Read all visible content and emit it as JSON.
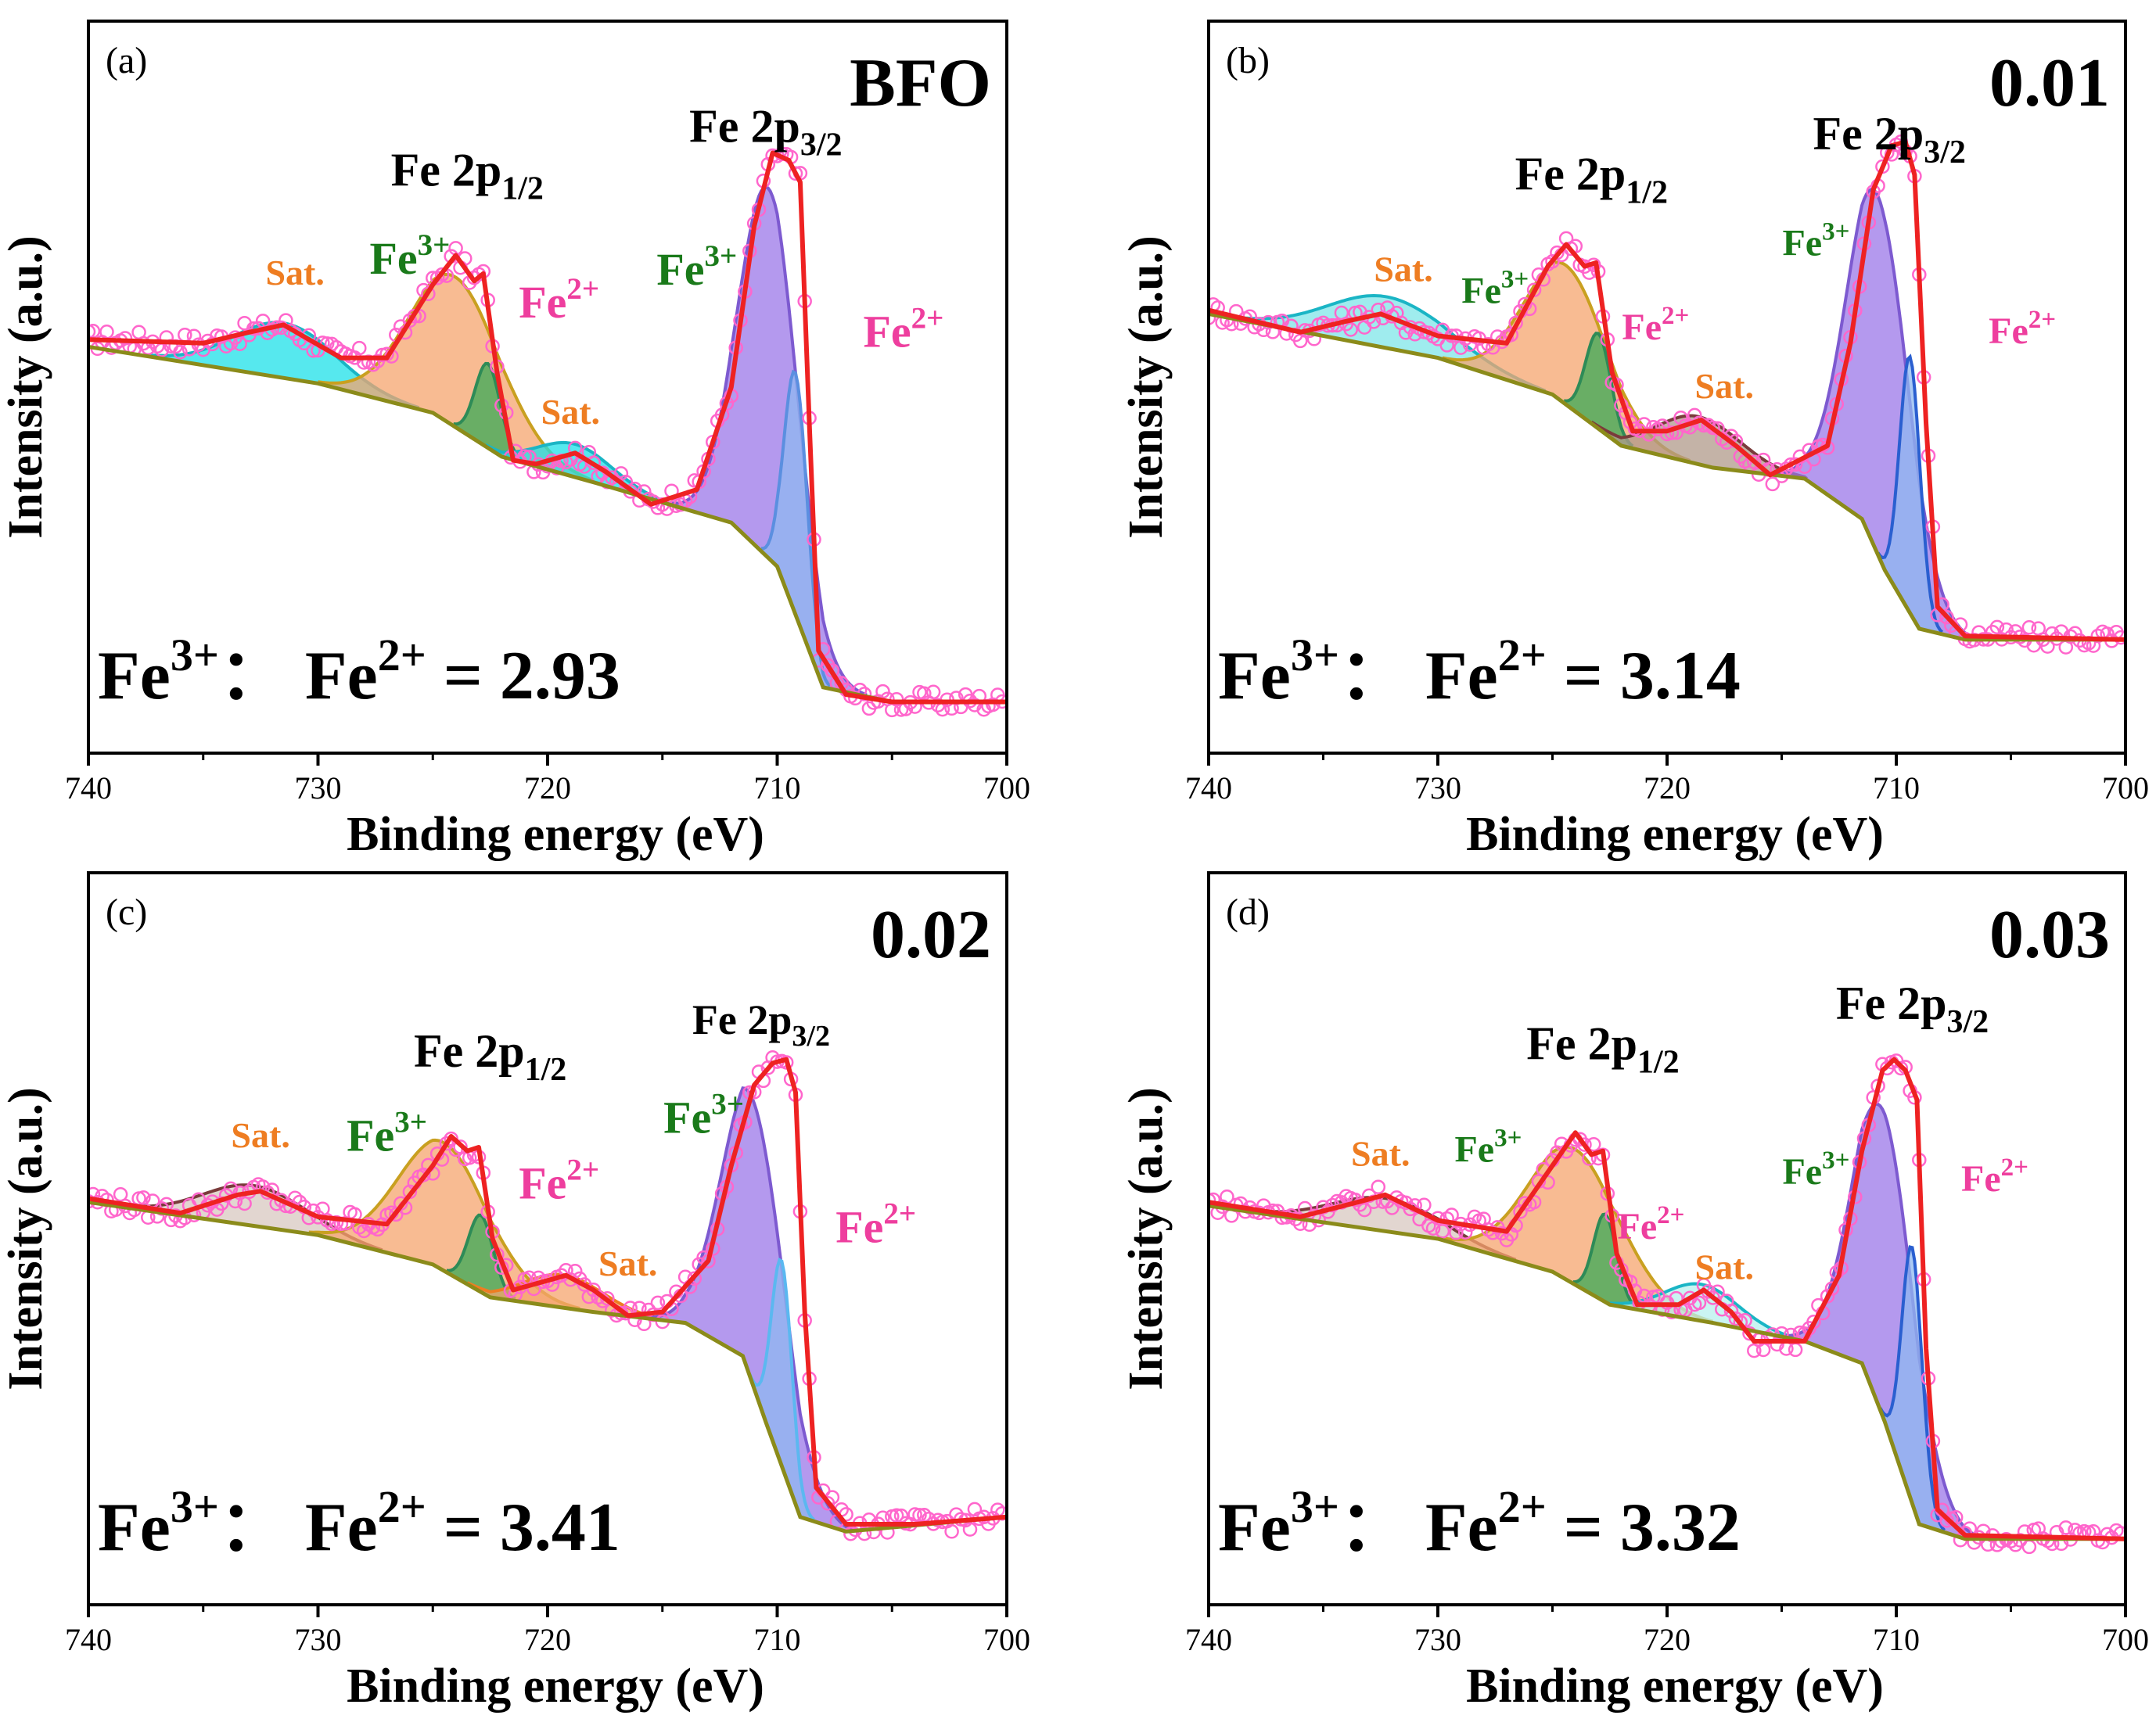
{
  "chart_data": [
    {
      "type": "line",
      "panel": "(a)",
      "sample": "BFO",
      "xlabel": "Binding energy (eV)",
      "ylabel": "Intensity (a.u.)",
      "xlim": [
        740,
        700
      ],
      "xticks": [
        740,
        730,
        720,
        710,
        700
      ],
      "ratio_text": {
        "fe3": "Fe",
        "fe3_sup": "3+",
        "sep": "：",
        "fe2": "Fe",
        "fe2_sup": "2+",
        "value": "= 2.93"
      },
      "annotations": [
        {
          "text": "Fe 2p",
          "sub": "1/2",
          "x": 723.5,
          "y": 0.775,
          "color": "#000000",
          "size": 60
        },
        {
          "text": "Fe 2p",
          "sub": "3/2",
          "x": 710.5,
          "y": 0.835,
          "color": "#000000",
          "size": 60
        },
        {
          "text": "Sat.",
          "x": 731,
          "y": 0.64,
          "color": "#ee7d22",
          "size": 46
        },
        {
          "text": "Fe",
          "sup": "3+",
          "x": 726,
          "y": 0.655,
          "color": "#1a7a1a",
          "size": 58
        },
        {
          "text": "Fe",
          "sup": "2+",
          "x": 719.5,
          "y": 0.595,
          "color": "#ee3e9e",
          "size": 58
        },
        {
          "text": "Sat.",
          "x": 719,
          "y": 0.45,
          "color": "#ee7d22",
          "size": 46
        },
        {
          "text": "Fe",
          "sup": "3+",
          "x": 713.5,
          "y": 0.64,
          "color": "#1a7a1a",
          "size": 58
        },
        {
          "text": "Fe",
          "sup": "2+",
          "x": 704.5,
          "y": 0.555,
          "color": "#ee3e9e",
          "size": 58
        }
      ],
      "background_points": [
        [
          740,
          0.555
        ],
        [
          730,
          0.505
        ],
        [
          725,
          0.465
        ],
        [
          722,
          0.405
        ],
        [
          718,
          0.37
        ],
        [
          712,
          0.315
        ],
        [
          710,
          0.255
        ],
        [
          708,
          0.09
        ],
        [
          705,
          0.07
        ],
        [
          700,
          0.07
        ]
      ],
      "envelope": [
        [
          740,
          0.565
        ],
        [
          735,
          0.56
        ],
        [
          733,
          0.575
        ],
        [
          731.5,
          0.585
        ],
        [
          729,
          0.54
        ],
        [
          727,
          0.54
        ],
        [
          725,
          0.64
        ],
        [
          724,
          0.68
        ],
        [
          723.2,
          0.645
        ],
        [
          722.8,
          0.655
        ],
        [
          722.2,
          0.52
        ],
        [
          721.5,
          0.4
        ],
        [
          720.5,
          0.395
        ],
        [
          718.8,
          0.41
        ],
        [
          717.5,
          0.385
        ],
        [
          715.5,
          0.34
        ],
        [
          713.5,
          0.36
        ],
        [
          712,
          0.5
        ],
        [
          711,
          0.72
        ],
        [
          710.2,
          0.82
        ],
        [
          709.5,
          0.81
        ],
        [
          709,
          0.78
        ],
        [
          708.6,
          0.45
        ],
        [
          708.2,
          0.14
        ],
        [
          707,
          0.08
        ],
        [
          705,
          0.07
        ],
        [
          700,
          0.07
        ]
      ],
      "components": [
        {
          "name": "Sat.",
          "center": 731.5,
          "height": 0.075,
          "width": 2.2,
          "fill": "#1ee0e8",
          "line": "#1ab5c5"
        },
        {
          "name": "Fe3+",
          "center": 724.0,
          "height": 0.205,
          "width": 2.0,
          "fill": "#f6a46e",
          "line": "#c9a020"
        },
        {
          "name": "Fe2+",
          "center": 722.6,
          "height": 0.115,
          "width": 0.55,
          "fill": "#3aaa55",
          "line": "#2e8b57"
        },
        {
          "name": "Sat.",
          "center": 718.8,
          "height": 0.045,
          "width": 1.6,
          "fill": "#1ee0e8",
          "line": "#1ab5c5"
        },
        {
          "name": "Fe3+",
          "center": 710.4,
          "height": 0.505,
          "width": 1.3,
          "fill": "#9b77e8",
          "line": "#7d5ad0"
        },
        {
          "name": "Fe2+",
          "center": 709.2,
          "height": 0.33,
          "width": 0.5,
          "fill": "#8fb8f0",
          "line": "#5b8fe0"
        }
      ]
    },
    {
      "type": "line",
      "panel": "(b)",
      "sample": "0.01",
      "xlabel": "Binding energy (eV)",
      "ylabel": "Intensity (a.u.)",
      "xlim": [
        740,
        700
      ],
      "xticks": [
        740,
        730,
        720,
        710,
        700
      ],
      "ratio_text": {
        "fe3": "Fe",
        "fe3_sup": "3+",
        "sep": "：",
        "fe2": "Fe",
        "fe2_sup": "2+",
        "value": "= 3.14"
      },
      "annotations": [
        {
          "text": "Fe 2p",
          "sub": "1/2",
          "x": 723.3,
          "y": 0.77,
          "color": "#000000",
          "size": 60
        },
        {
          "text": "Fe 2p",
          "sub": "3/2",
          "x": 710.3,
          "y": 0.825,
          "color": "#000000",
          "size": 60
        },
        {
          "text": "Sat.",
          "x": 731.5,
          "y": 0.645,
          "color": "#ee7d22",
          "size": 46
        },
        {
          "text": "Fe",
          "sup": "3+",
          "x": 727.5,
          "y": 0.615,
          "color": "#1a7a1a",
          "size": 48
        },
        {
          "text": "Fe",
          "sup": "2+",
          "x": 720.5,
          "y": 0.565,
          "color": "#ee3e9e",
          "size": 48
        },
        {
          "text": "Sat.",
          "x": 717.5,
          "y": 0.485,
          "color": "#ee7d22",
          "size": 46
        },
        {
          "text": "Fe",
          "sup": "3+",
          "x": 713.5,
          "y": 0.68,
          "color": "#1a7a1a",
          "size": 48
        },
        {
          "text": "Fe",
          "sup": "2+",
          "x": 704.5,
          "y": 0.56,
          "color": "#ee3e9e",
          "size": 48
        }
      ],
      "background_points": [
        [
          740,
          0.6
        ],
        [
          730,
          0.54
        ],
        [
          725,
          0.49
        ],
        [
          722,
          0.42
        ],
        [
          718,
          0.39
        ],
        [
          714,
          0.375
        ],
        [
          711.5,
          0.32
        ],
        [
          710.5,
          0.25
        ],
        [
          709,
          0.17
        ],
        [
          707,
          0.155
        ],
        [
          700,
          0.155
        ]
      ],
      "envelope": [
        [
          740,
          0.605
        ],
        [
          736,
          0.575
        ],
        [
          734,
          0.59
        ],
        [
          732.5,
          0.6
        ],
        [
          730,
          0.57
        ],
        [
          727,
          0.56
        ],
        [
          725.2,
          0.665
        ],
        [
          724.4,
          0.695
        ],
        [
          723.6,
          0.665
        ],
        [
          723.1,
          0.67
        ],
        [
          722.4,
          0.52
        ],
        [
          721.5,
          0.44
        ],
        [
          720,
          0.44
        ],
        [
          718.5,
          0.455
        ],
        [
          717,
          0.42
        ],
        [
          715.5,
          0.38
        ],
        [
          713,
          0.42
        ],
        [
          712,
          0.56
        ],
        [
          711,
          0.77
        ],
        [
          710.2,
          0.83
        ],
        [
          709.6,
          0.835
        ],
        [
          709.2,
          0.79
        ],
        [
          708.7,
          0.45
        ],
        [
          708.2,
          0.2
        ],
        [
          707,
          0.16
        ],
        [
          700,
          0.155
        ]
      ],
      "components": [
        {
          "name": "Sat.",
          "center": 732.2,
          "height": 0.07,
          "width": 2.6,
          "fill": "#7fe5e8",
          "line": "#1ab5c5"
        },
        {
          "name": "Fe3+",
          "center": 724.4,
          "height": 0.19,
          "width": 1.8,
          "fill": "#f6a46e",
          "line": "#c9a020"
        },
        {
          "name": "Fe2+",
          "center": 723.0,
          "height": 0.13,
          "width": 0.55,
          "fill": "#3aaa55",
          "line": "#2e8b57"
        },
        {
          "name": "Sat.",
          "center": 718.6,
          "height": 0.065,
          "width": 1.8,
          "fill": "#b09a8a",
          "line": "#7a3b3b"
        },
        {
          "name": "Fe3+",
          "center": 710.8,
          "height": 0.49,
          "width": 1.35,
          "fill": "#9b77e8",
          "line": "#7d5ad0"
        },
        {
          "name": "Fe2+",
          "center": 709.4,
          "height": 0.35,
          "width": 0.45,
          "fill": "#8fb8f0",
          "line": "#2a5fd0"
        }
      ]
    },
    {
      "type": "line",
      "panel": "(c)",
      "sample": "0.02",
      "xlabel": "Binding energy (eV)",
      "ylabel": "Intensity (a.u.)",
      "xlim": [
        740,
        700
      ],
      "xticks": [
        740,
        730,
        720,
        710,
        700
      ],
      "ratio_text": {
        "fe3": "Fe",
        "fe3_sup": "3+",
        "sep": "：",
        "fe2": "Fe",
        "fe2_sup": "2+",
        "value": "= 3.41"
      },
      "annotations": [
        {
          "text": "Fe 2p",
          "sub": "1/2",
          "x": 722.5,
          "y": 0.735,
          "color": "#000000",
          "size": 60
        },
        {
          "text": "Fe 2p",
          "sub": "3/2",
          "x": 710.7,
          "y": 0.78,
          "color": "#000000",
          "size": 54
        },
        {
          "text": "Sat.",
          "x": 732.5,
          "y": 0.625,
          "color": "#ee7d22",
          "size": 46
        },
        {
          "text": "Fe",
          "sup": "3+",
          "x": 727,
          "y": 0.62,
          "color": "#1a7a1a",
          "size": 58
        },
        {
          "text": "Fe",
          "sup": "2+",
          "x": 719.5,
          "y": 0.555,
          "color": "#ee3e9e",
          "size": 58
        },
        {
          "text": "Sat.",
          "x": 716.5,
          "y": 0.45,
          "color": "#ee7d22",
          "size": 46
        },
        {
          "text": "Fe",
          "sup": "3+",
          "x": 713.2,
          "y": 0.645,
          "color": "#1a7a1a",
          "size": 58
        },
        {
          "text": "Fe",
          "sup": "2+",
          "x": 705.7,
          "y": 0.495,
          "color": "#ee3e9e",
          "size": 58
        }
      ],
      "background_points": [
        [
          740,
          0.55
        ],
        [
          730,
          0.505
        ],
        [
          725,
          0.465
        ],
        [
          722.5,
          0.42
        ],
        [
          718,
          0.4
        ],
        [
          714,
          0.385
        ],
        [
          711.5,
          0.34
        ],
        [
          710.5,
          0.25
        ],
        [
          709,
          0.12
        ],
        [
          707,
          0.1
        ],
        [
          700,
          0.12
        ]
      ],
      "envelope": [
        [
          740,
          0.555
        ],
        [
          736,
          0.535
        ],
        [
          733.5,
          0.56
        ],
        [
          732.5,
          0.565
        ],
        [
          730,
          0.53
        ],
        [
          727,
          0.52
        ],
        [
          725,
          0.6
        ],
        [
          724.2,
          0.64
        ],
        [
          723.5,
          0.62
        ],
        [
          723,
          0.625
        ],
        [
          722.4,
          0.5
        ],
        [
          721.5,
          0.43
        ],
        [
          719.2,
          0.45
        ],
        [
          718,
          0.43
        ],
        [
          716.5,
          0.395
        ],
        [
          715,
          0.4
        ],
        [
          713,
          0.47
        ],
        [
          712,
          0.6
        ],
        [
          711,
          0.71
        ],
        [
          710.2,
          0.74
        ],
        [
          709.6,
          0.745
        ],
        [
          709.2,
          0.7
        ],
        [
          708.8,
          0.4
        ],
        [
          708.3,
          0.16
        ],
        [
          707,
          0.11
        ],
        [
          704,
          0.11
        ],
        [
          700,
          0.12
        ]
      ],
      "components": [
        {
          "name": "Sat.",
          "center": 732.8,
          "height": 0.055,
          "width": 2.2,
          "fill": "#d8c8c0",
          "line": "#7a3b3b"
        },
        {
          "name": "Fe3+",
          "center": 724.5,
          "height": 0.175,
          "width": 2.0,
          "fill": "#f6a46e",
          "line": "#c9a020"
        },
        {
          "name": "Fe2+",
          "center": 722.9,
          "height": 0.105,
          "width": 0.55,
          "fill": "#3aaa55",
          "line": "#2e8b57"
        },
        {
          "name": "Sat.",
          "center": 719.3,
          "height": 0.045,
          "width": 1.7,
          "fill": "#f6a46e",
          "line": "#ee7d22"
        },
        {
          "name": "Fe3+",
          "center": 711.0,
          "height": 0.39,
          "width": 1.4,
          "fill": "#9b77e8",
          "line": "#7d5ad0"
        },
        {
          "name": "Fe2+",
          "center": 709.8,
          "height": 0.28,
          "width": 0.45,
          "fill": "#8fb8f0",
          "line": "#5bb8f0"
        }
      ]
    },
    {
      "type": "line",
      "panel": "(d)",
      "sample": "0.03",
      "xlabel": "Binding energy (eV)",
      "ylabel": "Intensity (a.u.)",
      "xlim": [
        740,
        700
      ],
      "xticks": [
        740,
        730,
        720,
        710,
        700
      ],
      "ratio_text": {
        "fe3": "Fe",
        "fe3_sup": "3+",
        "sep": "：",
        "fe2": "Fe",
        "fe2_sup": "2+",
        "value": "= 3.32"
      },
      "annotations": [
        {
          "text": "Fe 2p",
          "sub": "1/2",
          "x": 722.8,
          "y": 0.745,
          "color": "#000000",
          "size": 60
        },
        {
          "text": "Fe 2p",
          "sub": "3/2",
          "x": 709.3,
          "y": 0.8,
          "color": "#000000",
          "size": 60
        },
        {
          "text": "Sat.",
          "x": 732.5,
          "y": 0.6,
          "color": "#ee7d22",
          "size": 46
        },
        {
          "text": "Fe",
          "sup": "3+",
          "x": 727.8,
          "y": 0.605,
          "color": "#1a7a1a",
          "size": 48
        },
        {
          "text": "Fe",
          "sup": "2+",
          "x": 720.7,
          "y": 0.5,
          "color": "#ee3e9e",
          "size": 48
        },
        {
          "text": "Sat.",
          "x": 717.5,
          "y": 0.445,
          "color": "#ee7d22",
          "size": 46
        },
        {
          "text": "Fe",
          "sup": "3+",
          "x": 713.5,
          "y": 0.575,
          "color": "#1a7a1a",
          "size": 48
        },
        {
          "text": "Fe",
          "sup": "2+",
          "x": 705.7,
          "y": 0.565,
          "color": "#ee3e9e",
          "size": 48
        }
      ],
      "background_points": [
        [
          740,
          0.545
        ],
        [
          730,
          0.5
        ],
        [
          725,
          0.455
        ],
        [
          722.5,
          0.41
        ],
        [
          718,
          0.385
        ],
        [
          714,
          0.36
        ],
        [
          711.5,
          0.33
        ],
        [
          710.5,
          0.25
        ],
        [
          709,
          0.11
        ],
        [
          707,
          0.09
        ],
        [
          700,
          0.09
        ]
      ],
      "envelope": [
        [
          740,
          0.55
        ],
        [
          736,
          0.53
        ],
        [
          733.5,
          0.55
        ],
        [
          732.3,
          0.56
        ],
        [
          730,
          0.525
        ],
        [
          727,
          0.51
        ],
        [
          725,
          0.6
        ],
        [
          724,
          0.645
        ],
        [
          723.3,
          0.615
        ],
        [
          722.8,
          0.62
        ],
        [
          722.2,
          0.48
        ],
        [
          721.3,
          0.41
        ],
        [
          719.5,
          0.41
        ],
        [
          718.4,
          0.43
        ],
        [
          717.2,
          0.4
        ],
        [
          716.2,
          0.36
        ],
        [
          714,
          0.36
        ],
        [
          712.5,
          0.45
        ],
        [
          711.5,
          0.62
        ],
        [
          710.6,
          0.73
        ],
        [
          710.1,
          0.745
        ],
        [
          709.6,
          0.73
        ],
        [
          709.1,
          0.69
        ],
        [
          708.7,
          0.35
        ],
        [
          708.2,
          0.13
        ],
        [
          707,
          0.095
        ],
        [
          700,
          0.09
        ]
      ],
      "components": [
        {
          "name": "Sat.",
          "center": 732.3,
          "height": 0.045,
          "width": 2.3,
          "fill": "#d8c8c0",
          "line": "#7a3b3b"
        },
        {
          "name": "Fe3+",
          "center": 724.0,
          "height": 0.185,
          "width": 2.0,
          "fill": "#f6a46e",
          "line": "#c9a020"
        },
        {
          "name": "Fe2+",
          "center": 722.7,
          "height": 0.12,
          "width": 0.5,
          "fill": "#3aaa55",
          "line": "#2e8b57"
        },
        {
          "name": "Sat.",
          "center": 718.5,
          "height": 0.05,
          "width": 1.6,
          "fill": "#b8f0ee",
          "line": "#1ab5c5"
        },
        {
          "name": "Fe3+",
          "center": 710.5,
          "height": 0.42,
          "width": 1.35,
          "fill": "#9b77e8",
          "line": "#7d5ad0"
        },
        {
          "name": "Fe2+",
          "center": 709.3,
          "height": 0.35,
          "width": 0.45,
          "fill": "#8fb8f0",
          "line": "#2a5fd0"
        }
      ]
    }
  ],
  "colors": {
    "axis": "#000000",
    "envelope": "#ee2222",
    "background": "#8b8b1a",
    "raw_points": "#ff66cc"
  }
}
